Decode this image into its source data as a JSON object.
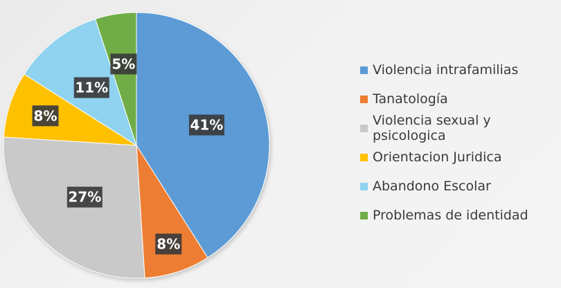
{
  "chart_data": {
    "type": "pie",
    "title": "",
    "slices": [
      {
        "name": "Violencia intrafamilias",
        "value": 41,
        "label": "41%",
        "color": "#5b9bd5"
      },
      {
        "name": "Tanatología",
        "value": 8,
        "label": "8%",
        "color": "#ed7d31"
      },
      {
        "name": "Violencia sexual y psicologica",
        "value": 27,
        "label": "27%",
        "color": "#c9c9c9"
      },
      {
        "name": "Orientacion Juridica",
        "value": 8,
        "label": "8%",
        "color": "#ffc000"
      },
      {
        "name": "Abandono Escolar",
        "value": 11,
        "label": "11%",
        "color": "#8fd3f0"
      },
      {
        "name": "Problemas de identidad",
        "value": 5,
        "label": "5%",
        "color": "#70ad47"
      }
    ],
    "legend_position": "right"
  }
}
